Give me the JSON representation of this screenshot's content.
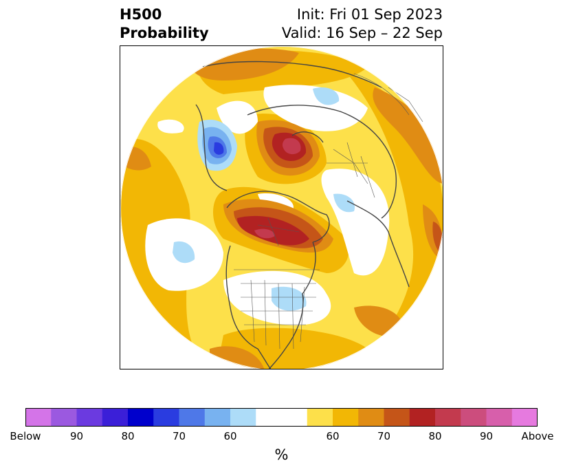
{
  "title": {
    "left_line1": "H500",
    "left_line2": "Probability",
    "right_line1": "Init: Fri 01 Sep 2023",
    "right_line2": "Valid: 16 Sep – 22 Sep"
  },
  "colorbar": {
    "colors": [
      "#d474e8",
      "#9b59e0",
      "#6b3ae0",
      "#3b1fd8",
      "#0000cc",
      "#2a3ce0",
      "#4e78e8",
      "#78b2f0",
      "#addcf8",
      "#ffffff",
      "#ffffff",
      "#fde04a",
      "#f2b705",
      "#e08c14",
      "#c55518",
      "#b22222",
      "#c33a4e",
      "#cc4d7d",
      "#d75fab",
      "#e67adf"
    ],
    "tick_labels": [
      "Below",
      "90",
      "80",
      "70",
      "60",
      "60",
      "70",
      "80",
      "90",
      "Above"
    ],
    "unit": "%"
  },
  "map": {
    "projection": "north polar stereographic",
    "fill_colors": {
      "light_yellow": "#fde04a",
      "yellow": "#f2b705",
      "orange": "#e08c14",
      "dark_orange": "#c55518",
      "red": "#b22222",
      "crimson": "#c33a4e",
      "light_blue": "#addcf8",
      "sky_blue": "#78b2f0",
      "blue": "#4e78e8",
      "deep_blue": "#2a3ce0"
    }
  }
}
